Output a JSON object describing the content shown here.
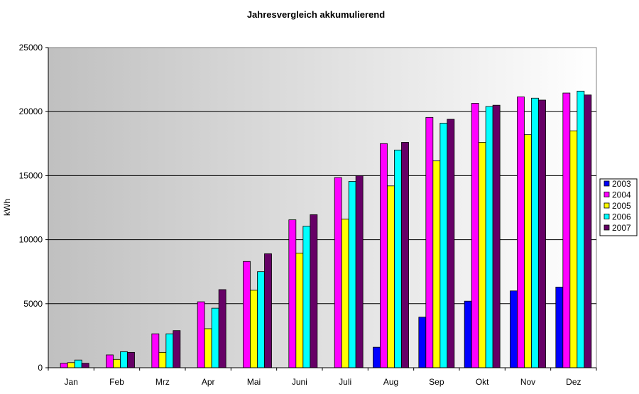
{
  "chart_data": {
    "type": "bar",
    "title": "Jahresvergleich akkumulierend",
    "xlabel": "",
    "ylabel": "kWh",
    "categories": [
      "Jan",
      "Feb",
      "Mrz",
      "Apr",
      "Mai",
      "Juni",
      "Juli",
      "Aug",
      "Sep",
      "Okt",
      "Nov",
      "Dez"
    ],
    "ylim": [
      0,
      25000
    ],
    "yticks": [
      0,
      5000,
      10000,
      15000,
      20000,
      25000
    ],
    "grid": true,
    "legend_position": "right",
    "series": [
      {
        "name": "2003",
        "color": "#0000ff",
        "values": [
          null,
          null,
          null,
          null,
          null,
          null,
          null,
          1600,
          3950,
          5200,
          6000,
          6300
        ]
      },
      {
        "name": "2004",
        "color": "#ff00ff",
        "values": [
          350,
          1000,
          2650,
          5150,
          8300,
          11550,
          14850,
          17500,
          19550,
          20650,
          21150,
          21450
        ]
      },
      {
        "name": "2005",
        "color": "#ffff00",
        "values": [
          400,
          650,
          1200,
          3050,
          6050,
          8950,
          11600,
          14200,
          16150,
          17600,
          18200,
          18500
        ]
      },
      {
        "name": "2006",
        "color": "#00ffff",
        "values": [
          600,
          1250,
          2650,
          4650,
          7500,
          11050,
          14550,
          17000,
          19100,
          20400,
          21050,
          21600
        ]
      },
      {
        "name": "2007",
        "color": "#660066",
        "values": [
          350,
          1200,
          2900,
          6100,
          8900,
          11950,
          15000,
          17600,
          19400,
          20500,
          20900,
          21300
        ]
      }
    ]
  }
}
